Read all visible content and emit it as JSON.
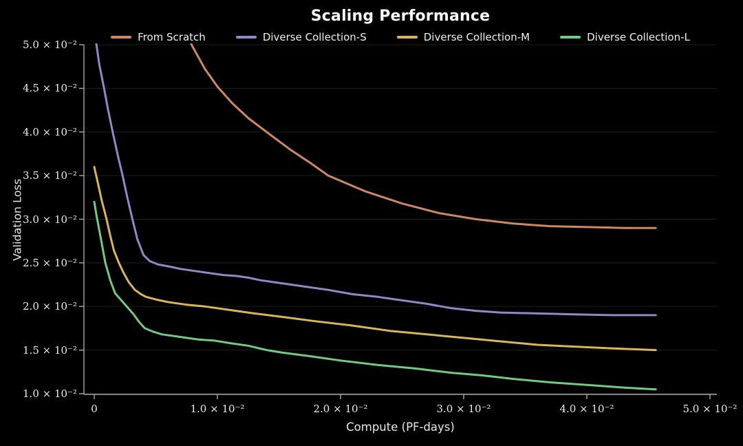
{
  "title": "Scaling Performance",
  "chart_data": {
    "type": "line",
    "title": "Scaling Performance",
    "xlabel": "Compute (PF-days)",
    "ylabel": "Validation Loss",
    "xlim": [
      0,
      0.05
    ],
    "ylim": [
      0.01,
      0.05
    ],
    "grid": "horizontal",
    "legend_position": "top-center",
    "style": {
      "background": "#000000",
      "text_color": "#f0f0f0",
      "grid_color": "#1e1e1e",
      "axis_color": "#a8a8a8",
      "line_width": 3
    },
    "x_ticks": {
      "values": [
        0,
        0.01,
        0.02,
        0.03,
        0.04,
        0.05
      ],
      "labels": [
        "0",
        "1.0 × 10⁻²",
        "2.0 × 10⁻²",
        "3.0 × 10⁻²",
        "4.0 × 10⁻²",
        "5.0 × 10⁻²"
      ]
    },
    "y_ticks": {
      "values": [
        0.01,
        0.015,
        0.02,
        0.025,
        0.03,
        0.035,
        0.04,
        0.045,
        0.05
      ],
      "labels": [
        "1.0 × 10⁻²",
        "1.5 × 10⁻²",
        "2.0 × 10⁻²",
        "2.5 × 10⁻²",
        "3.0 × 10⁻²",
        "3.5 × 10⁻²",
        "4.0 × 10⁻²",
        "4.5 × 10⁻²",
        "5.0 × 10⁻²"
      ]
    },
    "series": [
      {
        "name": "From Scratch",
        "color": "#cd8a60",
        "x": [
          0.0072,
          0.0079,
          0.009,
          0.01,
          0.0112,
          0.0125,
          0.014,
          0.016,
          0.0175,
          0.019,
          0.0205,
          0.022,
          0.025,
          0.028,
          0.031,
          0.034,
          0.037,
          0.04,
          0.043,
          0.0456
        ],
        "y": [
          0.0545,
          0.05,
          0.0472,
          0.0452,
          0.0433,
          0.0416,
          0.04,
          0.0379,
          0.0365,
          0.035,
          0.0341,
          0.0332,
          0.0318,
          0.0307,
          0.03,
          0.0295,
          0.0292,
          0.0291,
          0.029,
          0.029
        ]
      },
      {
        "name": "Diverse Collection-S",
        "color": "#9288c6",
        "x": [
          0.0,
          0.0001,
          0.0004,
          0.0008,
          0.0011,
          0.0015,
          0.0019,
          0.0023,
          0.0027,
          0.0031,
          0.0035,
          0.004,
          0.0045,
          0.0052,
          0.006,
          0.007,
          0.008,
          0.0095,
          0.0105,
          0.0115,
          0.0125,
          0.0135,
          0.015,
          0.017,
          0.019,
          0.021,
          0.023,
          0.025,
          0.027,
          0.029,
          0.031,
          0.033,
          0.036,
          0.039,
          0.042,
          0.0456
        ],
        "y": [
          0.052,
          0.0508,
          0.0478,
          0.045,
          0.0427,
          0.04,
          0.0374,
          0.035,
          0.0324,
          0.03,
          0.0277,
          0.0259,
          0.0252,
          0.0248,
          0.0246,
          0.0243,
          0.0241,
          0.0238,
          0.0236,
          0.0235,
          0.0233,
          0.023,
          0.0227,
          0.0223,
          0.0219,
          0.0214,
          0.0211,
          0.0207,
          0.0203,
          0.0198,
          0.0195,
          0.0193,
          0.0192,
          0.0191,
          0.019,
          0.019
        ]
      },
      {
        "name": "Diverse Collection-M",
        "color": "#d9b65c",
        "x": [
          0.0,
          0.0003,
          0.0006,
          0.001,
          0.0013,
          0.0016,
          0.002,
          0.0024,
          0.0028,
          0.0033,
          0.0038,
          0.0042,
          0.005,
          0.006,
          0.0075,
          0.009,
          0.01,
          0.0115,
          0.013,
          0.0153,
          0.018,
          0.021,
          0.024,
          0.027,
          0.03,
          0.033,
          0.036,
          0.039,
          0.042,
          0.0456
        ],
        "y": [
          0.036,
          0.0341,
          0.0322,
          0.03,
          0.0281,
          0.0264,
          0.025,
          0.0238,
          0.0228,
          0.0219,
          0.0214,
          0.0211,
          0.0208,
          0.0205,
          0.0202,
          0.02,
          0.0198,
          0.0195,
          0.0192,
          0.0188,
          0.0183,
          0.0178,
          0.0172,
          0.0168,
          0.0164,
          0.016,
          0.0156,
          0.0154,
          0.0152,
          0.015
        ]
      },
      {
        "name": "Diverse Collection-L",
        "color": "#72cb80",
        "x": [
          0.0,
          0.0002,
          0.0005,
          0.0009,
          0.0013,
          0.0017,
          0.0022,
          0.0027,
          0.0032,
          0.0036,
          0.0041,
          0.0048,
          0.0055,
          0.0065,
          0.0075,
          0.0085,
          0.0097,
          0.011,
          0.0125,
          0.014,
          0.0153,
          0.0175,
          0.02,
          0.023,
          0.026,
          0.029,
          0.0315,
          0.034,
          0.037,
          0.04,
          0.043,
          0.0456
        ],
        "y": [
          0.032,
          0.0303,
          0.0281,
          0.025,
          0.023,
          0.0215,
          0.0207,
          0.0199,
          0.0191,
          0.0183,
          0.0175,
          0.0171,
          0.0168,
          0.0166,
          0.0164,
          0.0162,
          0.0161,
          0.0158,
          0.0155,
          0.015,
          0.0147,
          0.0143,
          0.0138,
          0.0133,
          0.0129,
          0.0124,
          0.0121,
          0.0117,
          0.0113,
          0.011,
          0.0107,
          0.0105
        ]
      }
    ]
  }
}
